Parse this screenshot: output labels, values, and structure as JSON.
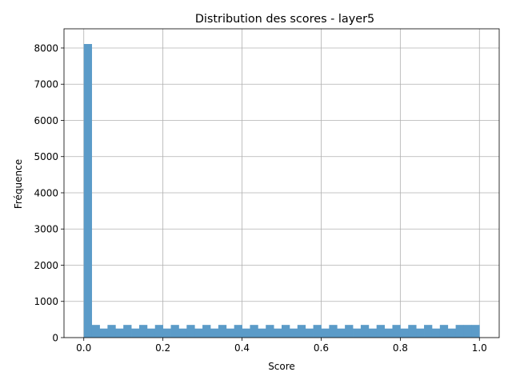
{
  "chart_data": {
    "type": "bar",
    "title": "Distribution des scores - layer5",
    "xlabel": "Score",
    "ylabel": "Fréquence",
    "xlim": [
      -0.05,
      1.05
    ],
    "ylim": [
      0,
      8530
    ],
    "grid": true,
    "x_ticks": [
      0.0,
      0.2,
      0.4,
      0.6,
      0.8,
      1.0
    ],
    "x_tick_labels": [
      "0.0",
      "0.2",
      "0.4",
      "0.6",
      "0.8",
      "1.0"
    ],
    "y_ticks": [
      0,
      1000,
      2000,
      3000,
      4000,
      5000,
      6000,
      7000,
      8000
    ],
    "y_tick_labels": [
      "0",
      "1000",
      "2000",
      "3000",
      "4000",
      "5000",
      "6000",
      "7000",
      "8000"
    ],
    "bin_start": 0.0,
    "bin_width": 0.02,
    "values": [
      8110,
      350,
      250,
      350,
      250,
      350,
      250,
      350,
      250,
      350,
      250,
      350,
      250,
      350,
      250,
      350,
      250,
      350,
      250,
      350,
      250,
      350,
      250,
      350,
      250,
      350,
      250,
      350,
      250,
      350,
      250,
      350,
      250,
      350,
      250,
      350,
      250,
      350,
      250,
      350,
      250,
      350,
      250,
      350,
      250,
      350,
      250,
      350,
      350,
      350
    ],
    "bar_color": "#5b9bc8",
    "grid_color": "#b0b0b0"
  }
}
